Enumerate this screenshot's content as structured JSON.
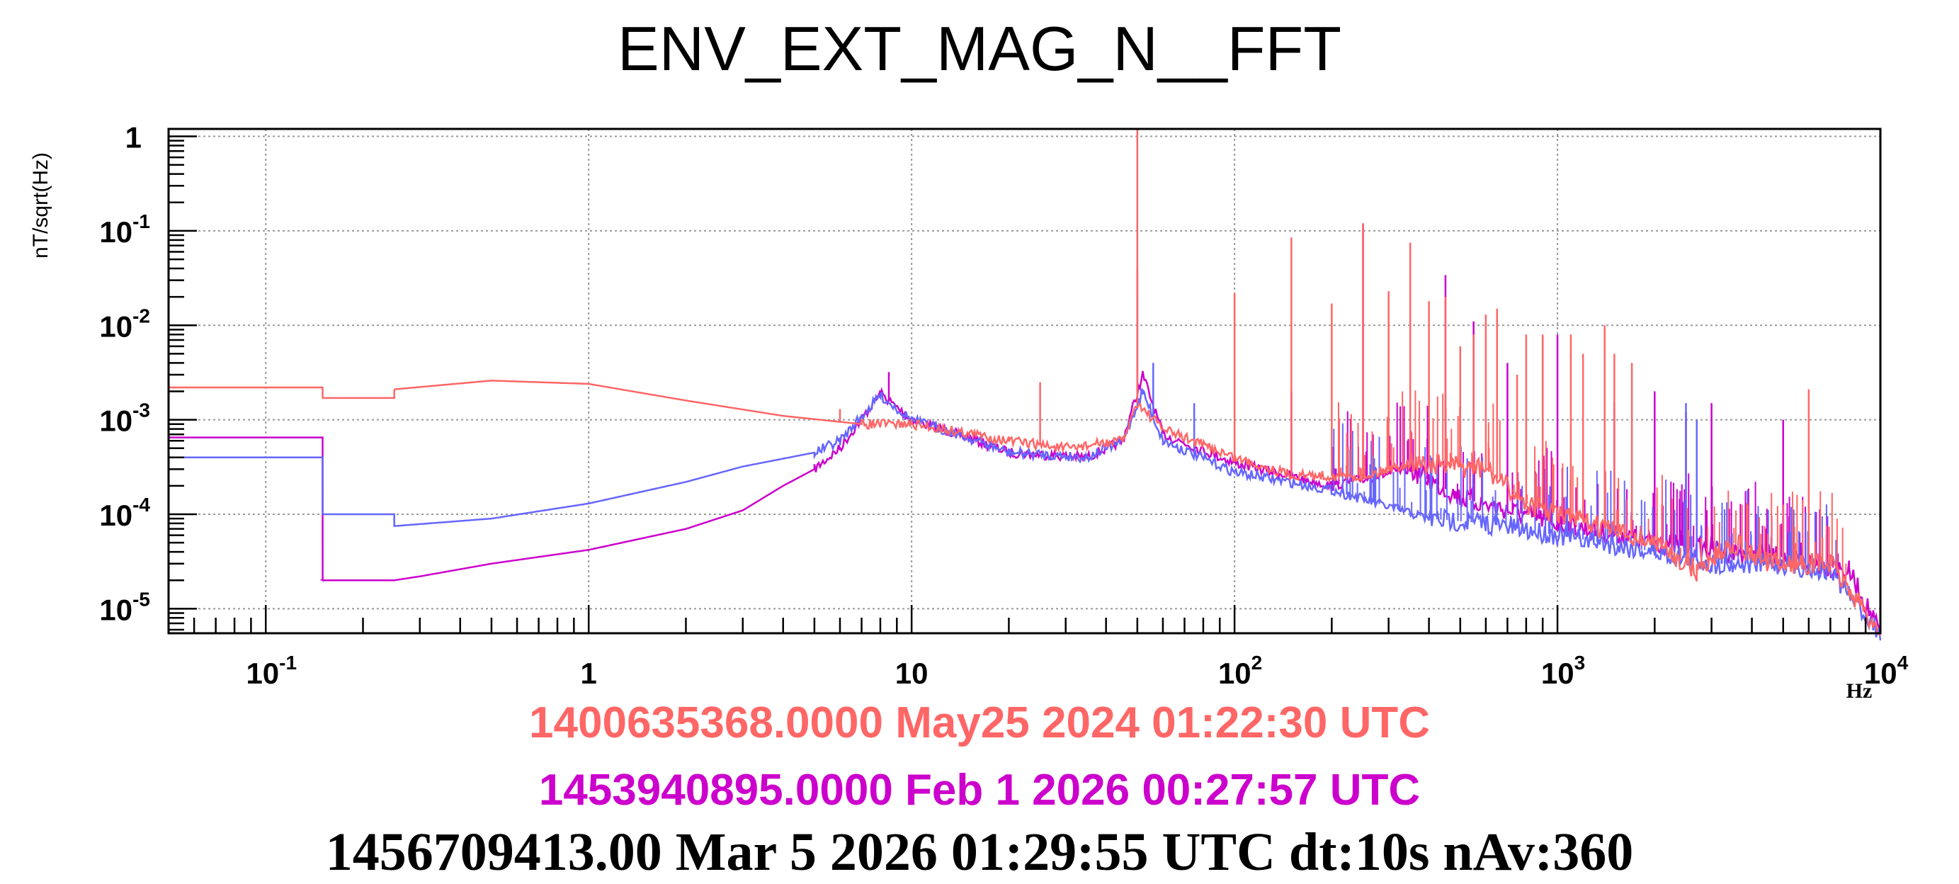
{
  "chart_data": {
    "type": "line",
    "title": "ENV_EXT_MAG_N__FFT",
    "ylabel": "nT/sqrt(Hz)",
    "xlabel": "Hz",
    "xscale": "log",
    "yscale": "log",
    "xlim": [
      0.05,
      10000
    ],
    "ylim": [
      5.5e-06,
      1.2
    ],
    "grid": true,
    "x_ticks": [
      {
        "v": 0.1,
        "b": "10",
        "e": "-1"
      },
      {
        "v": 1,
        "b": "1",
        "e": ""
      },
      {
        "v": 10,
        "b": "10",
        "e": ""
      },
      {
        "v": 100,
        "b": "10",
        "e": "2"
      },
      {
        "v": 1000,
        "b": "10",
        "e": "3"
      },
      {
        "v": 10000,
        "b": "10",
        "e": "4"
      }
    ],
    "y_ticks": [
      {
        "v": 1,
        "b": "1",
        "e": ""
      },
      {
        "v": 0.1,
        "b": "10",
        "e": "-1"
      },
      {
        "v": 0.01,
        "b": "10",
        "e": "-2"
      },
      {
        "v": 0.001,
        "b": "10",
        "e": "-3"
      },
      {
        "v": 0.0001,
        "b": "10",
        "e": "-4"
      },
      {
        "v": 1e-05,
        "b": "10",
        "e": "-5"
      }
    ],
    "series": [
      {
        "name": "1453940895.0000 Feb 1 2026 00:27:57 UTC",
        "color": "#cc00cc",
        "points": [
          [
            0.05,
            0.00065
          ],
          [
            0.15,
            0.00065
          ],
          [
            0.15,
            2e-05
          ],
          [
            0.25,
            2e-05
          ],
          [
            0.3,
            2.2e-05
          ],
          [
            0.5,
            3e-05
          ],
          [
            1,
            4.2e-05
          ],
          [
            2,
            7e-05
          ],
          [
            3,
            0.00011
          ],
          [
            4,
            0.0002
          ],
          [
            5,
            0.0003
          ],
          [
            6,
            0.0005
          ],
          [
            8,
            0.0019
          ],
          [
            10,
            0.001
          ],
          [
            14,
            0.0007
          ],
          [
            20,
            0.00045
          ],
          [
            35,
            0.0004
          ],
          [
            45,
            0.0006
          ],
          [
            52,
            0.003
          ],
          [
            60,
            0.0007
          ],
          [
            100,
            0.00035
          ],
          [
            200,
            0.0002
          ],
          [
            350,
            0.0003
          ],
          [
            500,
            0.00015
          ],
          [
            1000,
            8e-05
          ],
          [
            2000,
            5e-05
          ],
          [
            5000,
            3.5e-05
          ],
          [
            8000,
            2.5e-05
          ],
          [
            10000,
            5.5e-06
          ]
        ],
        "peaks": [
          [
            8.5,
            0.0032
          ],
          [
            50,
            0.04
          ],
          [
            150,
            0.002
          ],
          [
            250,
            0.12
          ],
          [
            450,
            0.034
          ],
          [
            550,
            0.011
          ],
          [
            700,
            0.004
          ],
          [
            1000,
            0.008
          ],
          [
            1500,
            0.0015
          ],
          [
            2000,
            0.002
          ],
          [
            2500,
            0.0012
          ],
          [
            3000,
            0.0015
          ],
          [
            5000,
            0.001
          ]
        ]
      },
      {
        "name": "",
        "color": "#6666ff",
        "points": [
          [
            0.05,
            0.0004
          ],
          [
            0.15,
            0.0004
          ],
          [
            0.15,
            0.0001
          ],
          [
            0.25,
            0.0001
          ],
          [
            0.25,
            7.5e-05
          ],
          [
            0.5,
            9e-05
          ],
          [
            1,
            0.00013
          ],
          [
            2,
            0.00022
          ],
          [
            3,
            0.00032
          ],
          [
            5,
            0.00045
          ],
          [
            6,
            0.0006
          ],
          [
            8,
            0.0018
          ],
          [
            10,
            0.001
          ],
          [
            14,
            0.0007
          ],
          [
            20,
            0.00045
          ],
          [
            35,
            0.0004
          ],
          [
            45,
            0.0006
          ],
          [
            52,
            0.002
          ],
          [
            60,
            0.0006
          ],
          [
            100,
            0.00028
          ],
          [
            200,
            0.00018
          ],
          [
            400,
            9e-05
          ],
          [
            600,
            8e-05
          ],
          [
            1000,
            6e-05
          ],
          [
            2000,
            4e-05
          ],
          [
            3000,
            3e-05
          ],
          [
            5000,
            3e-05
          ],
          [
            7000,
            2.5e-05
          ],
          [
            10000,
            5.5e-06
          ]
        ],
        "peaks": [
          [
            50,
            0.02
          ],
          [
            56,
            0.004
          ],
          [
            75,
            0.0015
          ],
          [
            2500,
            0.0015
          ],
          [
            2700,
            0.001
          ]
        ]
      },
      {
        "name": "1400635368.0000 May25 2024 01:22:30 UTC",
        "color": "#ff6666",
        "points": [
          [
            0.05,
            0.0022
          ],
          [
            0.15,
            0.0022
          ],
          [
            0.15,
            0.0017
          ],
          [
            0.25,
            0.0017
          ],
          [
            0.25,
            0.0021
          ],
          [
            0.5,
            0.0026
          ],
          [
            1,
            0.0024
          ],
          [
            2,
            0.0016
          ],
          [
            4,
            0.0011
          ],
          [
            7,
            0.0009
          ],
          [
            10,
            0.0009
          ],
          [
            14,
            0.00075
          ],
          [
            20,
            0.0006
          ],
          [
            30,
            0.0005
          ],
          [
            45,
            0.0006
          ],
          [
            50,
            0.0015
          ],
          [
            60,
            0.0008
          ],
          [
            100,
            0.0004
          ],
          [
            150,
            0.00026
          ],
          [
            250,
            0.00025
          ],
          [
            350,
            0.00035
          ],
          [
            600,
            0.0003
          ],
          [
            800,
            0.00013
          ],
          [
            1000,
            0.0001
          ],
          [
            2000,
            5e-05
          ],
          [
            2700,
            2.5e-05
          ],
          [
            3500,
            5e-05
          ],
          [
            4500,
            3e-05
          ],
          [
            7000,
            3e-05
          ],
          [
            10000,
            5.5e-06
          ]
        ],
        "peaks": [
          [
            6,
            0.0013
          ],
          [
            25,
            0.0025
          ],
          [
            50,
            1.8
          ],
          [
            100,
            0.022
          ],
          [
            150,
            0.085
          ],
          [
            200,
            0.017
          ],
          [
            250,
            0.12
          ],
          [
            300,
            0.023
          ],
          [
            350,
            0.075
          ],
          [
            400,
            0.018
          ],
          [
            450,
            0.02
          ],
          [
            500,
            0.006
          ],
          [
            550,
            0.008
          ],
          [
            600,
            0.013
          ],
          [
            650,
            0.015
          ],
          [
            750,
            0.003
          ],
          [
            800,
            0.008
          ],
          [
            900,
            0.008
          ],
          [
            1100,
            0.008
          ],
          [
            1200,
            0.005
          ],
          [
            1400,
            0.01
          ],
          [
            1500,
            0.005
          ],
          [
            1700,
            0.004
          ],
          [
            6000,
            0.0021
          ]
        ]
      }
    ]
  },
  "legend": {
    "line1": "1400635368.0000 May25 2024 01:22:30 UTC",
    "line1_color": "#ff6666",
    "line2": "1453940895.0000 Feb 1 2026 00:27:57 UTC",
    "line2_color": "#cc00cc",
    "line3": "1456709413.00 Mar 5 2026 01:29:55 UTC dt:10s nAv:360"
  }
}
